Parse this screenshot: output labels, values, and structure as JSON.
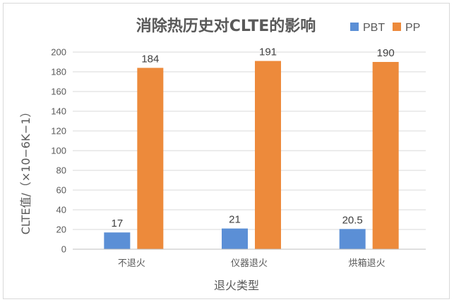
{
  "chart_data": {
    "type": "bar",
    "title": "消除热历史对CLTE的影响",
    "xlabel": "退火类型",
    "ylabel": "CLTE值/（×10−6K−1）",
    "categories": [
      "不退火",
      "仪器退火",
      "烘箱退火"
    ],
    "series": [
      {
        "name": "PBT",
        "values": [
          17,
          21,
          20.5
        ],
        "labels": [
          "17",
          "21",
          "20.5"
        ],
        "color": "#5b8fd6"
      },
      {
        "name": "PP",
        "values": [
          184,
          191,
          190
        ],
        "labels": [
          "184",
          "191",
          "190"
        ],
        "color": "#ed8a3b"
      }
    ],
    "ylim": [
      0,
      200
    ],
    "yticks": [
      0,
      20,
      40,
      60,
      80,
      100,
      120,
      140,
      160,
      180,
      200
    ],
    "grid": true,
    "legend_position": "top-right"
  }
}
